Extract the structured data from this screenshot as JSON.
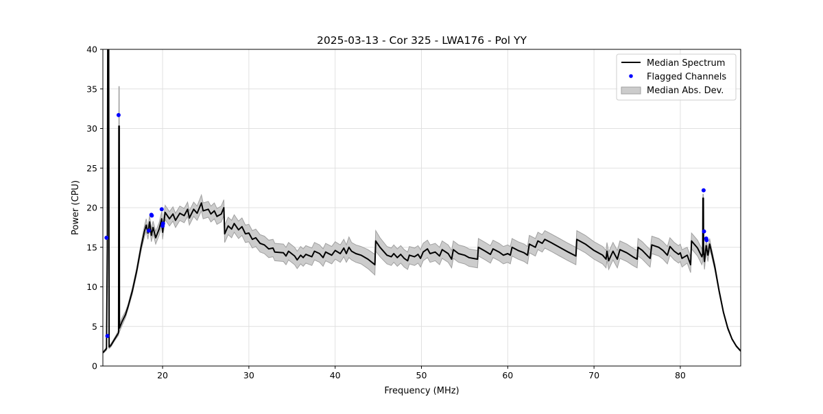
{
  "chart_data": {
    "type": "line",
    "title": "2025-03-13 - Cor 325 - LWA176 - Pol YY",
    "xlabel": "Frequency (MHz)",
    "ylabel": "Power (CPU)",
    "xlim": [
      13.08,
      87.0
    ],
    "ylim": [
      0,
      40
    ],
    "xticks": [
      20,
      30,
      40,
      50,
      60,
      70,
      80
    ],
    "yticks": [
      0,
      5,
      10,
      15,
      20,
      25,
      30,
      35,
      40
    ],
    "grid": true,
    "legend_position": "top-right",
    "legend": [
      "Median Spectrum",
      "Flagged Channels",
      "Median Abs. Dev."
    ],
    "colors": {
      "median": "#000000",
      "flagged": "#0000ff",
      "mad": "#cccccc",
      "mad_edge": "#a0a0a0",
      "grid": "#e0e0e0"
    },
    "series_columns": [
      "frequency_mhz",
      "median_power",
      "median_abs_dev"
    ],
    "median_spectrum": [
      [
        13.1,
        1.7,
        0.1
      ],
      [
        13.5,
        2.2,
        0.2
      ],
      [
        13.6,
        15,
        0.5
      ],
      [
        13.65,
        45,
        2
      ],
      [
        13.75,
        45,
        2
      ],
      [
        13.8,
        2.4,
        0.2
      ],
      [
        14.0,
        2.6,
        0.2
      ],
      [
        14.5,
        3.5,
        0.2
      ],
      [
        14.9,
        4.2,
        0.3
      ],
      [
        14.93,
        30.3,
        5
      ],
      [
        14.98,
        30.3,
        5
      ],
      [
        15.0,
        4.8,
        0.5
      ],
      [
        15.3,
        5.6,
        0.5
      ],
      [
        15.7,
        6.5,
        0.4
      ],
      [
        16.0,
        7.5,
        0.3
      ],
      [
        16.5,
        9.5,
        0.4
      ],
      [
        17.0,
        12,
        0.4
      ],
      [
        17.5,
        15,
        0.5
      ],
      [
        17.9,
        17,
        0.7
      ],
      [
        18.1,
        17.8,
        0.8
      ],
      [
        18.3,
        16.8,
        0.8
      ],
      [
        18.5,
        18.2,
        0.8
      ],
      [
        18.7,
        16.5,
        0.8
      ],
      [
        18.9,
        17.5,
        0.8
      ],
      [
        19.2,
        16.2,
        0.8
      ],
      [
        19.6,
        17.3,
        0.8
      ],
      [
        19.9,
        18.6,
        0.9
      ],
      [
        20.0,
        16.9,
        0.9
      ],
      [
        20.3,
        19.4,
        0.9
      ],
      [
        20.8,
        18.6,
        0.9
      ],
      [
        21.2,
        19.2,
        0.9
      ],
      [
        21.5,
        18.4,
        0.9
      ],
      [
        22.0,
        19.3,
        0.9
      ],
      [
        22.5,
        19.0,
        0.9
      ],
      [
        22.9,
        19.8,
        0.9
      ],
      [
        23.1,
        18.7,
        0.9
      ],
      [
        23.6,
        19.8,
        0.9
      ],
      [
        24.0,
        19.3,
        0.9
      ],
      [
        24.5,
        20.6,
        1
      ],
      [
        24.7,
        19.6,
        1
      ],
      [
        25.3,
        19.8,
        1
      ],
      [
        25.6,
        19.2,
        1
      ],
      [
        26.0,
        19.6,
        1
      ],
      [
        26.3,
        18.9,
        1
      ],
      [
        26.8,
        19.2,
        1
      ],
      [
        27.1,
        20.0,
        1
      ],
      [
        27.2,
        16.7,
        1.1
      ],
      [
        27.6,
        17.7,
        1.1
      ],
      [
        28.0,
        17.3,
        1.1
      ],
      [
        28.3,
        18.0,
        1.1
      ],
      [
        28.8,
        17.2,
        1.1
      ],
      [
        29.2,
        17.6,
        1.1
      ],
      [
        29.6,
        16.7,
        1.1
      ],
      [
        30.0,
        16.8,
        1.1
      ],
      [
        30.4,
        16.0,
        1.1
      ],
      [
        30.8,
        16.2,
        1.1
      ],
      [
        31.3,
        15.5,
        1.1
      ],
      [
        31.8,
        15.3,
        1.1
      ],
      [
        32.3,
        14.8,
        1.1
      ],
      [
        32.8,
        14.9,
        1.1
      ],
      [
        33.0,
        14.4,
        1.1
      ],
      [
        34.0,
        14.3,
        1.1
      ],
      [
        34.3,
        13.9,
        1.1
      ],
      [
        34.6,
        14.5,
        1.1
      ],
      [
        35.3,
        13.9,
        1.1
      ],
      [
        35.6,
        13.4,
        1.1
      ],
      [
        36.0,
        14.0,
        1.1
      ],
      [
        36.3,
        13.7,
        1.1
      ],
      [
        36.6,
        14.1,
        1.1
      ],
      [
        37.3,
        13.8,
        1.1
      ],
      [
        37.6,
        14.5,
        1.1
      ],
      [
        38.2,
        14.2,
        1.1
      ],
      [
        38.6,
        13.7,
        1.1
      ],
      [
        38.9,
        14.4,
        1.1
      ],
      [
        39.6,
        14.0,
        1.1
      ],
      [
        40.0,
        14.6,
        1.1
      ],
      [
        40.6,
        14.2,
        1.1
      ],
      [
        41.0,
        14.9,
        1.1
      ],
      [
        41.3,
        14.2,
        1.1
      ],
      [
        41.6,
        15.0,
        1.3
      ],
      [
        41.9,
        14.5,
        1.1
      ],
      [
        42.4,
        14.2,
        1.1
      ],
      [
        43.0,
        14.0,
        1.1
      ],
      [
        43.8,
        13.5,
        1.2
      ],
      [
        44.6,
        12.8,
        1.3
      ],
      [
        44.7,
        15.8,
        1.3
      ],
      [
        45.2,
        15.0,
        1.2
      ],
      [
        46.0,
        14.0,
        1.1
      ],
      [
        46.5,
        13.8,
        1.1
      ],
      [
        46.8,
        14.2,
        1.1
      ],
      [
        47.2,
        13.7,
        1.1
      ],
      [
        47.6,
        14.1,
        1.1
      ],
      [
        48.0,
        13.6,
        1.1
      ],
      [
        48.4,
        13.3,
        1.1
      ],
      [
        48.6,
        14.0,
        1.1
      ],
      [
        49.2,
        13.8,
        1.1
      ],
      [
        49.6,
        14.1,
        1.1
      ],
      [
        49.9,
        13.6,
        1.1
      ],
      [
        50.2,
        14.4,
        1.1
      ],
      [
        50.7,
        14.8,
        1.1
      ],
      [
        51.0,
        14.2,
        1.1
      ],
      [
        51.6,
        14.4,
        1.1
      ],
      [
        52.1,
        13.9,
        1.1
      ],
      [
        52.4,
        14.7,
        1.1
      ],
      [
        53.1,
        14.2,
        1.1
      ],
      [
        53.5,
        13.5,
        1.1
      ],
      [
        53.7,
        14.7,
        1.1
      ],
      [
        54.3,
        14.2,
        1.1
      ],
      [
        55.0,
        14.0,
        1.1
      ],
      [
        55.5,
        13.7,
        1.1
      ],
      [
        56.5,
        13.5,
        1.1
      ],
      [
        56.6,
        15.0,
        1.1
      ],
      [
        57.4,
        14.5,
        1.1
      ],
      [
        58.0,
        14.1,
        1.1
      ],
      [
        58.3,
        14.8,
        1.1
      ],
      [
        59.0,
        14.4,
        1.1
      ],
      [
        59.5,
        14.0,
        1.1
      ],
      [
        60.0,
        14.2,
        1.1
      ],
      [
        60.3,
        14.0,
        1.1
      ],
      [
        60.5,
        15.0,
        1.1
      ],
      [
        61.2,
        14.6,
        1.1
      ],
      [
        61.9,
        14.3,
        1.1
      ],
      [
        62.3,
        14.0,
        1.1
      ],
      [
        62.5,
        15.4,
        1.1
      ],
      [
        63.2,
        15.0,
        1.1
      ],
      [
        63.5,
        15.8,
        1.1
      ],
      [
        64.0,
        15.5,
        1.1
      ],
      [
        64.3,
        16.0,
        1.1
      ],
      [
        65.0,
        15.6,
        1.1
      ],
      [
        66.0,
        15.0,
        1.1
      ],
      [
        67.0,
        14.4,
        1.1
      ],
      [
        67.9,
        13.9,
        1.1
      ],
      [
        68.0,
        16.0,
        1.1
      ],
      [
        69.0,
        15.4,
        1.1
      ],
      [
        70.0,
        14.6,
        1.1
      ],
      [
        71.0,
        14.0,
        1.1
      ],
      [
        71.4,
        13.5,
        1.1
      ],
      [
        71.5,
        14.5,
        1.1
      ],
      [
        71.7,
        13.3,
        1.1
      ],
      [
        72.2,
        14.5,
        1.1
      ],
      [
        72.7,
        13.5,
        1.1
      ],
      [
        73.0,
        14.7,
        1.1
      ],
      [
        73.8,
        14.3,
        1.1
      ],
      [
        74.5,
        13.8,
        1.1
      ],
      [
        75.0,
        13.5,
        1.1
      ],
      [
        75.1,
        15.0,
        1.1
      ],
      [
        75.6,
        14.6,
        1.1
      ],
      [
        76.3,
        13.8,
        1.1
      ],
      [
        76.5,
        13.6,
        1.1
      ],
      [
        76.7,
        15.3,
        1.1
      ],
      [
        77.5,
        15.0,
        1.1
      ],
      [
        78.0,
        14.6,
        1.1
      ],
      [
        78.5,
        14.0,
        1.1
      ],
      [
        78.8,
        15.1,
        1.1
      ],
      [
        79.3,
        14.5,
        1.1
      ],
      [
        79.8,
        14.1,
        1.1
      ],
      [
        80.0,
        14.3,
        1.1
      ],
      [
        80.2,
        13.6,
        1.1
      ],
      [
        80.8,
        14.0,
        1.0
      ],
      [
        81.2,
        12.8,
        1.0
      ],
      [
        81.3,
        15.8,
        1.0
      ],
      [
        82.0,
        14.9,
        1.0
      ],
      [
        82.5,
        13.8,
        1.0
      ],
      [
        82.6,
        14.2,
        1.0
      ],
      [
        82.62,
        21.2,
        0.5
      ],
      [
        82.68,
        21.2,
        0.5
      ],
      [
        82.7,
        14.5,
        1.0
      ],
      [
        82.8,
        13.2,
        1.0
      ],
      [
        83.0,
        15.2,
        0.8
      ],
      [
        83.2,
        14.0,
        0.8
      ],
      [
        83.4,
        15.4,
        0.7
      ],
      [
        83.6,
        14.5,
        0.5
      ],
      [
        84.0,
        12.5,
        0.4
      ],
      [
        84.5,
        9.5,
        0.3
      ],
      [
        85.0,
        6.8,
        0.2
      ],
      [
        85.5,
        4.8,
        0.2
      ],
      [
        86.0,
        3.4,
        0.1
      ],
      [
        86.5,
        2.5,
        0.1
      ],
      [
        87.0,
        1.9,
        0.1
      ]
    ],
    "flagged_channels": [
      [
        13.5,
        16.2
      ],
      [
        13.6,
        3.8
      ],
      [
        14.9,
        31.7
      ],
      [
        18.4,
        17.1
      ],
      [
        18.7,
        19.1
      ],
      [
        18.75,
        19.0
      ],
      [
        19.9,
        19.8
      ],
      [
        20.0,
        17.7
      ],
      [
        20.05,
        18.0
      ],
      [
        82.7,
        22.2
      ],
      [
        82.75,
        17.0
      ],
      [
        83.0,
        16.1
      ],
      [
        83.05,
        15.9
      ]
    ]
  }
}
